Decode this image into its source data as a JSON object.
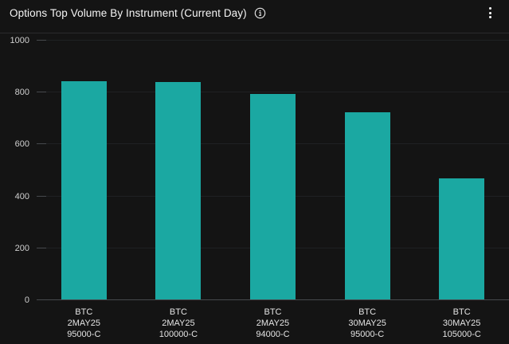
{
  "header": {
    "title": "Options Top Volume By Instrument (Current Day)",
    "info_icon": "info-circle",
    "menu_icon": "kebab-menu"
  },
  "colors": {
    "background": "#141414",
    "bar": "#1BA8A2",
    "gridline": "#1F2123",
    "axis_line": "#46494D",
    "tick": "#46494D",
    "divider": "#2A2B2D",
    "title_text": "#F5F5F5",
    "y_label_text": "#CFCFCF",
    "x_label_text": "#E4E4E4"
  },
  "chart_data": {
    "type": "bar",
    "title": "Options Top Volume By Instrument (Current Day)",
    "categories": [
      [
        "BTC",
        "2MAY25",
        "95000-C"
      ],
      [
        "BTC",
        "2MAY25",
        "100000-C"
      ],
      [
        "BTC",
        "2MAY25",
        "94000-C"
      ],
      [
        "BTC",
        "30MAY25",
        "95000-C"
      ],
      [
        "BTC",
        "30MAY25",
        "105000-C"
      ]
    ],
    "values": [
      845,
      840,
      795,
      725,
      470
    ],
    "xlabel": "",
    "ylabel": "",
    "ylim": [
      0,
      1000
    ],
    "yticks": [
      0,
      200,
      400,
      600,
      800,
      1000
    ],
    "grid": true,
    "legend": false,
    "bar_color": "#1BA8A2"
  }
}
